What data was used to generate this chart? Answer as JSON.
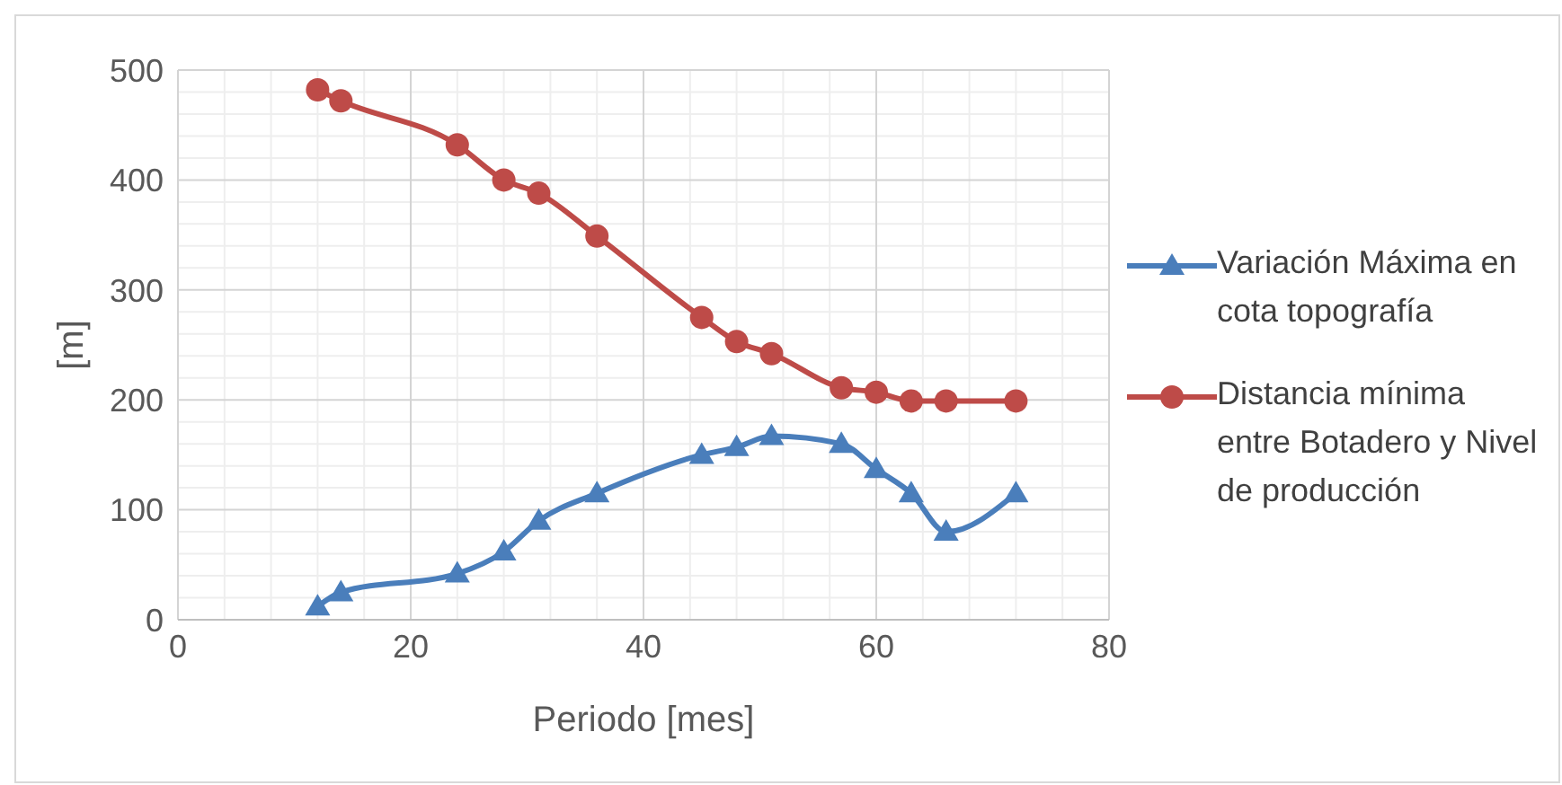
{
  "chart_data": {
    "type": "line",
    "xlabel": "Periodo [mes]",
    "ylabel": "[m]",
    "x": [
      12,
      14,
      24,
      28,
      31,
      36,
      45,
      48,
      51,
      57,
      60,
      63,
      66,
      72
    ],
    "series": [
      {
        "name": "Variación Máxima en cota topografía",
        "color": "#4a7ebb",
        "marker": "triangle",
        "values": [
          12,
          25,
          42,
          62,
          90,
          115,
          150,
          157,
          167,
          160,
          137,
          115,
          80,
          115
        ]
      },
      {
        "name": "Distancia mínima entre Botadero y Nivel de producción",
        "color": "#be4b48",
        "marker": "circle",
        "values": [
          482,
          472,
          432,
          400,
          388,
          349,
          275,
          253,
          242,
          211,
          207,
          199,
          199,
          199
        ]
      }
    ],
    "xlim": [
      0,
      80
    ],
    "xticks": [
      0,
      20,
      40,
      60,
      80
    ],
    "ylim": [
      0,
      500
    ],
    "yticks": [
      0,
      100,
      200,
      300,
      400,
      500
    ],
    "grid": true,
    "legend": "right",
    "line_style": "solid"
  }
}
